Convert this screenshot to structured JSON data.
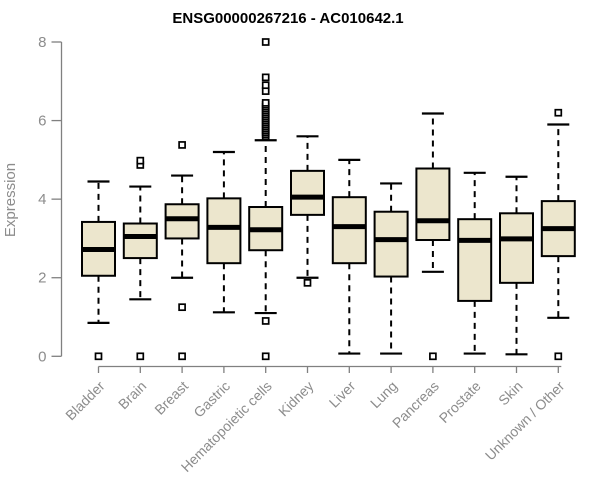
{
  "chart_data": {
    "type": "boxplot",
    "title": "ENSG00000267216 - AC010642.1",
    "ylabel": "Expression",
    "xlabel": "",
    "ylim": [
      0,
      8
    ],
    "yticks": [
      0,
      2,
      4,
      6,
      8
    ],
    "grid": false,
    "legend": false,
    "colors": {
      "box_fill": "#ece6cd",
      "box_stroke": "#000000",
      "median": "#000000",
      "whisker": "#000000",
      "outlier_stroke": "#000000",
      "axis": "#808080",
      "tick_label": "#8c8c8c",
      "title": "#000000"
    },
    "categories": [
      "Bladder",
      "Brain",
      "Breast",
      "Gastric",
      "Hematopoietic cells",
      "Kidney",
      "Liver",
      "Lung",
      "Pancreas",
      "Prostate",
      "Skin",
      "Unknown / Other"
    ],
    "series": [
      {
        "category": "Bladder",
        "whisker_low": 0.85,
        "q1": 2.05,
        "median": 2.72,
        "q3": 3.42,
        "whisker_high": 4.45,
        "outliers": [
          0
        ]
      },
      {
        "category": "Brain",
        "whisker_low": 1.45,
        "q1": 2.5,
        "median": 3.05,
        "q3": 3.38,
        "whisker_high": 4.32,
        "outliers": [
          0,
          4.87,
          4.98
        ]
      },
      {
        "category": "Breast",
        "whisker_low": 2.0,
        "q1": 3.0,
        "median": 3.5,
        "q3": 3.87,
        "whisker_high": 4.6,
        "outliers": [
          0,
          1.25,
          5.38
        ]
      },
      {
        "category": "Gastric",
        "whisker_low": 1.12,
        "q1": 2.37,
        "median": 3.28,
        "q3": 4.02,
        "whisker_high": 5.2,
        "outliers": []
      },
      {
        "category": "Hematopoietic cells",
        "whisker_low": 1.1,
        "q1": 2.7,
        "median": 3.22,
        "q3": 3.8,
        "whisker_high": 5.5,
        "outliers": [
          0,
          0.9,
          5.6,
          5.65,
          5.7,
          5.75,
          5.8,
          5.85,
          5.9,
          5.95,
          6.0,
          6.05,
          6.1,
          6.15,
          6.2,
          6.25,
          6.3,
          6.35,
          6.4,
          6.45,
          6.75,
          6.9,
          7.1,
          8.0
        ]
      },
      {
        "category": "Kidney",
        "whisker_low": 2.0,
        "q1": 3.6,
        "median": 4.05,
        "q3": 4.72,
        "whisker_high": 5.6,
        "outliers": [
          1.87
        ]
      },
      {
        "category": "Liver",
        "whisker_low": 0.07,
        "q1": 2.37,
        "median": 3.3,
        "q3": 4.05,
        "whisker_high": 5.0,
        "outliers": []
      },
      {
        "category": "Lung",
        "whisker_low": 0.07,
        "q1": 2.03,
        "median": 2.97,
        "q3": 3.68,
        "whisker_high": 4.4,
        "outliers": []
      },
      {
        "category": "Pancreas",
        "whisker_low": 2.15,
        "q1": 2.96,
        "median": 3.45,
        "q3": 4.78,
        "whisker_high": 6.18,
        "outliers": [
          0
        ]
      },
      {
        "category": "Prostate",
        "whisker_low": 0.07,
        "q1": 1.41,
        "median": 2.95,
        "q3": 3.49,
        "whisker_high": 4.67,
        "outliers": []
      },
      {
        "category": "Skin",
        "whisker_low": 0.05,
        "q1": 1.87,
        "median": 2.99,
        "q3": 3.64,
        "whisker_high": 4.57,
        "outliers": []
      },
      {
        "category": "Unknown / Other",
        "whisker_low": 0.98,
        "q1": 2.55,
        "median": 3.25,
        "q3": 3.95,
        "whisker_high": 5.9,
        "outliers": [
          0,
          6.2
        ]
      }
    ]
  }
}
